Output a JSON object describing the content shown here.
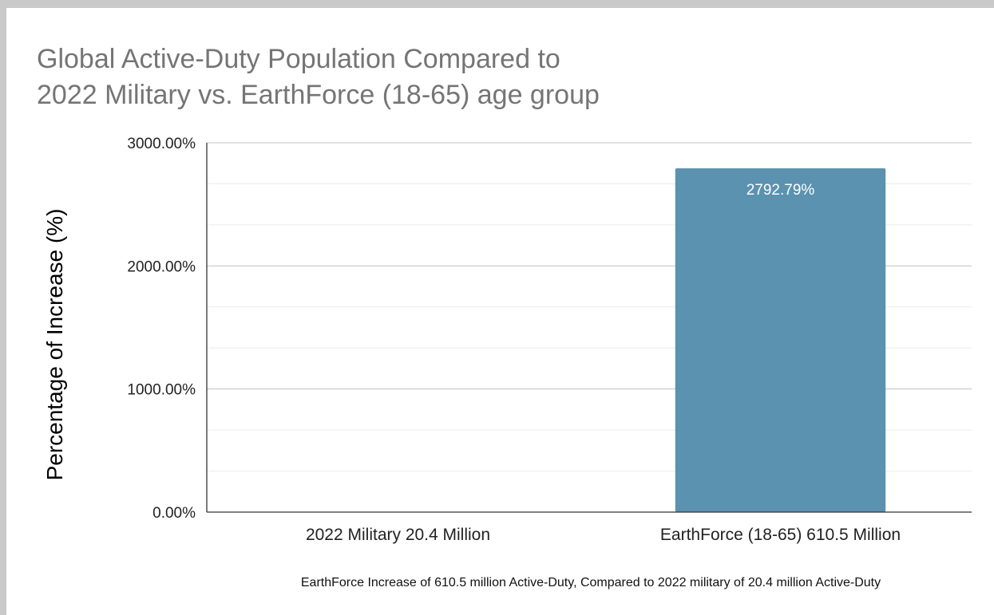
{
  "chart_data": {
    "type": "bar",
    "title_lines": [
      "Global Active-Duty Population Compared to",
      "2022 Military vs. EarthForce (18-65) age group"
    ],
    "xlabel": "EarthForce Increase of 610.5 million Active-Duty, Compared to 2022 military of 20.4 million Active-Duty",
    "ylabel": "Percentage of Increase (%)",
    "categories": [
      "2022 Military 20.4 Million",
      "EarthForce (18-65) 610.5 Million"
    ],
    "series": [
      {
        "values": [
          0,
          2792.79
        ],
        "data_labels": [
          "",
          "2792.79%"
        ],
        "color": "#5b92b0"
      }
    ],
    "ylim": [
      0,
      3000
    ],
    "y_ticks": [
      {
        "value": 0,
        "label": "0.00%"
      },
      {
        "value": 1000,
        "label": "1000.00%"
      },
      {
        "value": 2000,
        "label": "2000.00%"
      },
      {
        "value": 3000,
        "label": "3000.00%"
      }
    ],
    "minor_gridline_step": 333.33,
    "grid": true,
    "legend": "none"
  }
}
